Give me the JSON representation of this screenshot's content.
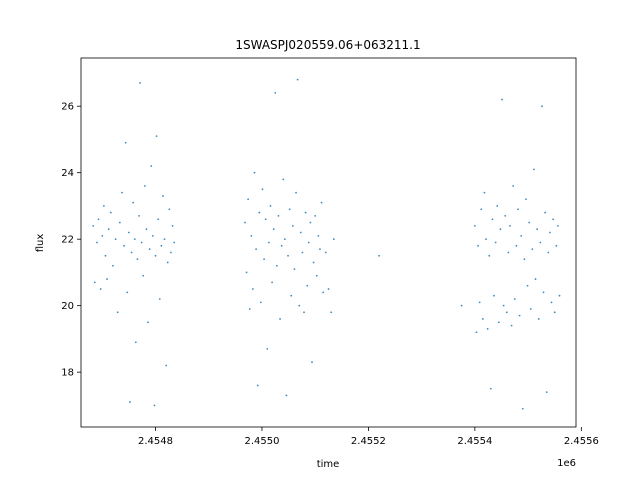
{
  "chart_data": {
    "type": "scatter",
    "title": "1SWASPJ020559.06+063211.1",
    "xlabel": "time",
    "ylabel": "flux",
    "x_offset_label": "1e6",
    "xlim": [
      2454660,
      2455590
    ],
    "ylim": [
      16.35,
      27.45
    ],
    "x_ticks": [
      {
        "value": 2454800,
        "label": "2.4548"
      },
      {
        "value": 2455000,
        "label": "2.4550"
      },
      {
        "value": 2455200,
        "label": "2.4552"
      },
      {
        "value": 2455400,
        "label": "2.4554"
      },
      {
        "value": 2455600,
        "label": "2.4556"
      }
    ],
    "y_ticks": [
      {
        "value": 18,
        "label": "18"
      },
      {
        "value": 20,
        "label": "20"
      },
      {
        "value": 22,
        "label": "22"
      },
      {
        "value": 24,
        "label": "24"
      },
      {
        "value": 26,
        "label": "26"
      }
    ],
    "grid": false,
    "marker_color": "#1f77b4",
    "series": [
      {
        "points": [
          [
            2454683,
            22.4
          ],
          [
            2454686,
            20.7
          ],
          [
            2454690,
            21.9
          ],
          [
            2454693,
            22.6
          ],
          [
            2454697,
            20.5
          ],
          [
            2454700,
            22.1
          ],
          [
            2454703,
            23.0
          ],
          [
            2454706,
            21.5
          ],
          [
            2454709,
            20.8
          ],
          [
            2454712,
            22.3
          ],
          [
            2454716,
            22.8
          ],
          [
            2454720,
            21.2
          ],
          [
            2454725,
            22.0
          ],
          [
            2454729,
            19.8
          ],
          [
            2454733,
            22.5
          ],
          [
            2454737,
            23.4
          ],
          [
            2454741,
            21.8
          ],
          [
            2454744,
            24.9
          ],
          [
            2454747,
            20.4
          ],
          [
            2454750,
            22.2
          ],
          [
            2454752,
            17.1
          ],
          [
            2454755,
            21.6
          ],
          [
            2454758,
            23.1
          ],
          [
            2454761,
            22.0
          ],
          [
            2454763,
            18.9
          ],
          [
            2454766,
            21.4
          ],
          [
            2454769,
            22.7
          ],
          [
            2454771,
            26.7
          ],
          [
            2454774,
            21.9
          ],
          [
            2454777,
            20.9
          ],
          [
            2454780,
            23.6
          ],
          [
            2454783,
            22.3
          ],
          [
            2454786,
            19.5
          ],
          [
            2454789,
            21.7
          ],
          [
            2454792,
            24.2
          ],
          [
            2454795,
            22.1
          ],
          [
            2454798,
            17.0
          ],
          [
            2454800,
            21.5
          ],
          [
            2454802,
            25.1
          ],
          [
            2454805,
            22.6
          ],
          [
            2454808,
            20.2
          ],
          [
            2454811,
            21.8
          ],
          [
            2454814,
            23.3
          ],
          [
            2454817,
            22.0
          ],
          [
            2454820,
            18.2
          ],
          [
            2454823,
            21.3
          ],
          [
            2454826,
            22.9
          ],
          [
            2454829,
            21.6
          ],
          [
            2454832,
            22.4
          ],
          [
            2454835,
            21.9
          ],
          [
            2454968,
            22.5
          ],
          [
            2454971,
            21.0
          ],
          [
            2454974,
            23.2
          ],
          [
            2454977,
            19.9
          ],
          [
            2454980,
            22.1
          ],
          [
            2454983,
            20.5
          ],
          [
            2454986,
            24.0
          ],
          [
            2454989,
            21.7
          ],
          [
            2454992,
            17.6
          ],
          [
            2454995,
            22.8
          ],
          [
            2454998,
            20.1
          ],
          [
            2455001,
            23.5
          ],
          [
            2455004,
            21.4
          ],
          [
            2455007,
            22.6
          ],
          [
            2455010,
            18.7
          ],
          [
            2455013,
            21.9
          ],
          [
            2455016,
            23.0
          ],
          [
            2455019,
            20.7
          ],
          [
            2455022,
            22.3
          ],
          [
            2455025,
            26.4
          ],
          [
            2455028,
            21.2
          ],
          [
            2455031,
            22.7
          ],
          [
            2455034,
            19.6
          ],
          [
            2455037,
            21.8
          ],
          [
            2455040,
            23.8
          ],
          [
            2455043,
            22.0
          ],
          [
            2455046,
            17.3
          ],
          [
            2455049,
            21.5
          ],
          [
            2455052,
            22.9
          ],
          [
            2455055,
            20.3
          ],
          [
            2455058,
            22.4
          ],
          [
            2455061,
            21.1
          ],
          [
            2455064,
            23.4
          ],
          [
            2455067,
            26.8
          ],
          [
            2455070,
            20.0
          ],
          [
            2455073,
            22.2
          ],
          [
            2455076,
            21.6
          ],
          [
            2455079,
            19.8
          ],
          [
            2455082,
            22.8
          ],
          [
            2455085,
            20.6
          ],
          [
            2455088,
            21.9
          ],
          [
            2455091,
            22.5
          ],
          [
            2455094,
            18.3
          ],
          [
            2455097,
            21.3
          ],
          [
            2455100,
            22.7
          ],
          [
            2455103,
            20.9
          ],
          [
            2455106,
            22.1
          ],
          [
            2455109,
            21.7
          ],
          [
            2455112,
            23.1
          ],
          [
            2455115,
            20.4
          ],
          [
            2455120,
            21.6
          ],
          [
            2455125,
            20.5
          ],
          [
            2455130,
            19.8
          ],
          [
            2455135,
            22.0
          ],
          [
            2455220,
            21.5
          ],
          [
            2455375,
            20.0
          ],
          [
            2455400,
            22.4
          ],
          [
            2455403,
            19.2
          ],
          [
            2455406,
            21.8
          ],
          [
            2455409,
            20.1
          ],
          [
            2455412,
            22.9
          ],
          [
            2455415,
            19.6
          ],
          [
            2455418,
            23.4
          ],
          [
            2455421,
            22.0
          ],
          [
            2455424,
            19.3
          ],
          [
            2455427,
            21.5
          ],
          [
            2455430,
            17.5
          ],
          [
            2455433,
            22.6
          ],
          [
            2455436,
            20.3
          ],
          [
            2455439,
            21.9
          ],
          [
            2455442,
            23.0
          ],
          [
            2455445,
            19.5
          ],
          [
            2455448,
            22.3
          ],
          [
            2455451,
            26.2
          ],
          [
            2455454,
            20.0
          ],
          [
            2455457,
            22.7
          ],
          [
            2455460,
            19.8
          ],
          [
            2455463,
            21.6
          ],
          [
            2455466,
            22.4
          ],
          [
            2455469,
            19.4
          ],
          [
            2455472,
            23.6
          ],
          [
            2455475,
            20.2
          ],
          [
            2455478,
            21.8
          ],
          [
            2455481,
            22.9
          ],
          [
            2455484,
            19.7
          ],
          [
            2455487,
            22.1
          ],
          [
            2455490,
            16.9
          ],
          [
            2455493,
            21.4
          ],
          [
            2455496,
            23.2
          ],
          [
            2455499,
            20.6
          ],
          [
            2455502,
            22.5
          ],
          [
            2455505,
            19.9
          ],
          [
            2455508,
            21.7
          ],
          [
            2455511,
            24.1
          ],
          [
            2455514,
            20.8
          ],
          [
            2455517,
            22.3
          ],
          [
            2455520,
            19.6
          ],
          [
            2455523,
            21.9
          ],
          [
            2455526,
            26.0
          ],
          [
            2455529,
            20.4
          ],
          [
            2455532,
            22.8
          ],
          [
            2455535,
            17.4
          ],
          [
            2455538,
            21.6
          ],
          [
            2455541,
            22.2
          ],
          [
            2455544,
            20.1
          ],
          [
            2455547,
            22.6
          ],
          [
            2455550,
            19.8
          ],
          [
            2455553,
            21.8
          ],
          [
            2455556,
            22.4
          ],
          [
            2455559,
            20.3
          ]
        ]
      }
    ]
  }
}
